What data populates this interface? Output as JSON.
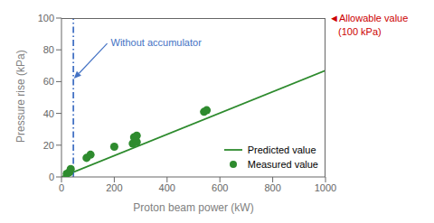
{
  "chart_data": {
    "type": "scatter",
    "x_label": "Proton beam power (kW)",
    "y_label": "Pressure rise (kPa)",
    "xlim": [
      0,
      1000
    ],
    "ylim": [
      0,
      100
    ],
    "xticks": [
      0,
      200,
      400,
      600,
      800,
      1000
    ],
    "yticks": [
      0,
      20,
      40,
      60,
      80,
      100
    ],
    "legend": "lower right",
    "series": [
      {
        "name": "Predicted value",
        "type": "line",
        "color": "#2e8b2e",
        "x": [
          0,
          1000
        ],
        "values": [
          0,
          67
        ]
      },
      {
        "name": "Measured value",
        "type": "scatter",
        "color": "#2e8b2e",
        "x": [
          20,
          30,
          35,
          95,
          110,
          200,
          270,
          275,
          285,
          285,
          540,
          550
        ],
        "values": [
          2,
          3,
          5,
          12,
          14,
          19,
          21,
          25,
          22,
          26,
          41,
          42
        ]
      },
      {
        "type": "line",
        "color": "#4472c4",
        "line_style": "dashdot",
        "x": [
          45,
          45
        ],
        "values": [
          0,
          100
        ]
      }
    ],
    "annotations": [
      {
        "text": "Without accumulator",
        "x": 180,
        "y": 84,
        "arrow_x": 47,
        "arrow_y": 62,
        "color": "#4472c4"
      },
      {
        "text": "◄Allowable value",
        "color": "#cc0000"
      },
      {
        "text": "(100 kPa)",
        "color": "#cc0000"
      }
    ]
  }
}
